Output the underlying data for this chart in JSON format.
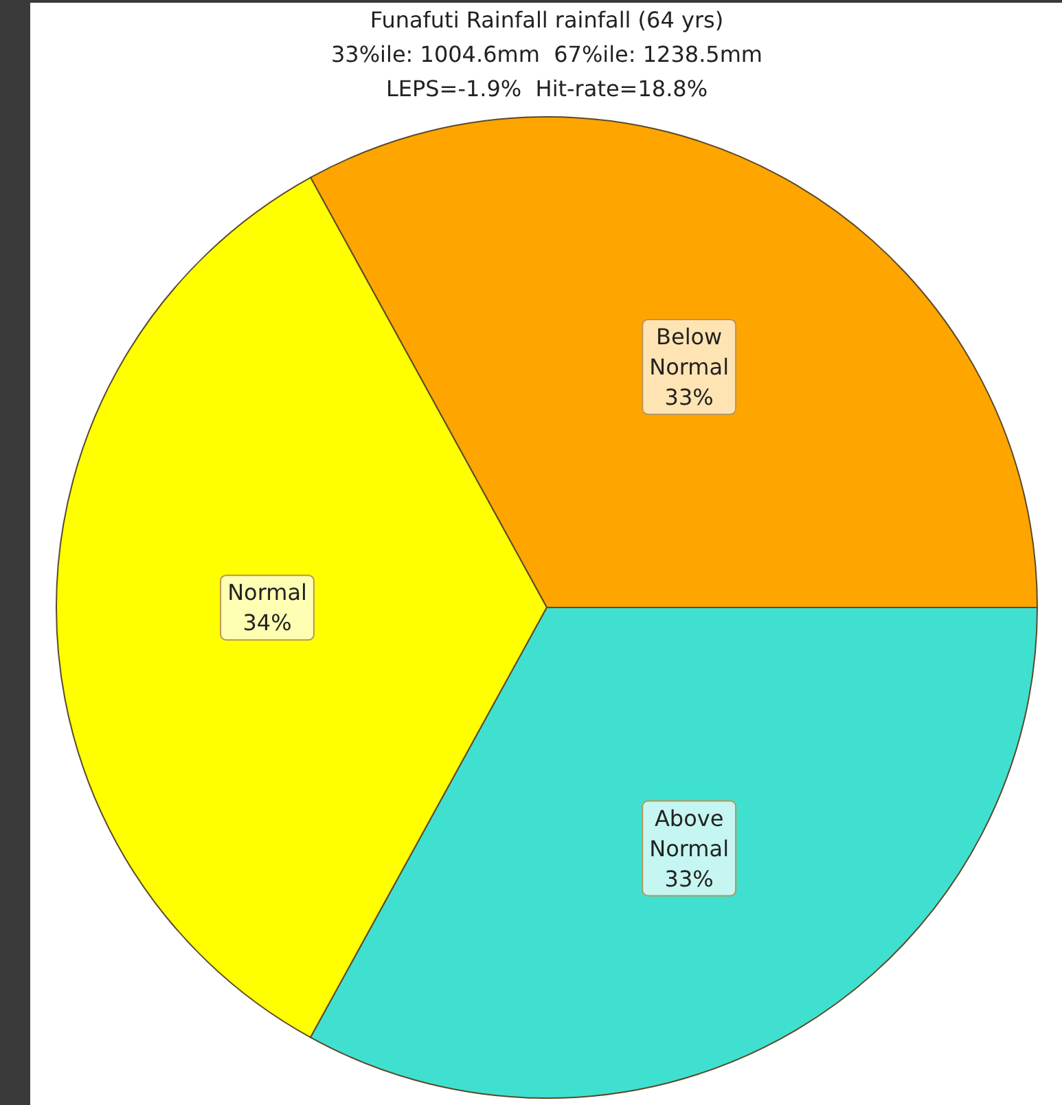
{
  "chart_data": {
    "type": "pie",
    "title": "Funafuti Rainfall rainfall (64 yrs)",
    "subtitle": "33%ile: 1004.6mm  67%ile: 1238.5mm\nLEPS=-1.9%  Hit-rate=18.8%",
    "categories": [
      "Below Normal",
      "Normal",
      "Above Normal"
    ],
    "values": [
      33,
      34,
      33
    ],
    "colors": [
      "#ffa500",
      "#ffff00",
      "#40e0d0"
    ],
    "value_labels": [
      "33%",
      "34%",
      "33%"
    ]
  }
}
